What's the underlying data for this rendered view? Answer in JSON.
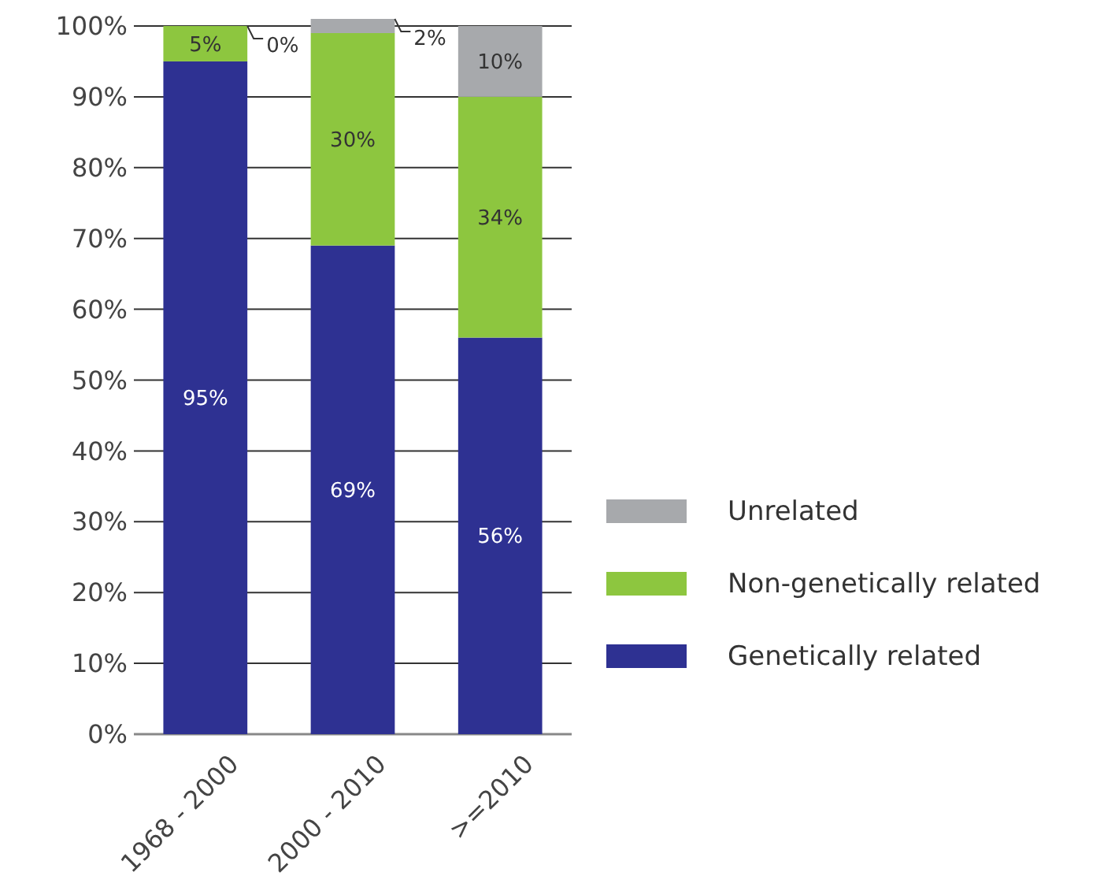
{
  "chart_data": {
    "type": "bar",
    "stacked": true,
    "categories": [
      "1968 - 2000",
      "2000 - 2010",
      ">=2010"
    ],
    "series": [
      {
        "name": "Genetically related",
        "color": "#2e3192",
        "values": [
          95,
          69,
          56
        ],
        "value_labels": [
          "95%",
          "69%",
          "56%"
        ]
      },
      {
        "name": "Non-genetically related",
        "color": "#8dc63f",
        "values": [
          5,
          30,
          34
        ],
        "value_labels": [
          "5%",
          "30%",
          "34%"
        ]
      },
      {
        "name": "Unrelated",
        "color": "#a7a9ac",
        "values": [
          0,
          2,
          10
        ],
        "value_labels": [
          "0%",
          "2%",
          "10%"
        ]
      }
    ],
    "ylim": [
      0,
      101
    ],
    "yticks": [
      {
        "value": 0,
        "label": "0%"
      },
      {
        "value": 10,
        "label": "10%"
      },
      {
        "value": 20,
        "label": "20%"
      },
      {
        "value": 30,
        "label": "30%"
      },
      {
        "value": 40,
        "label": "40%"
      },
      {
        "value": 50,
        "label": "50%"
      },
      {
        "value": 60,
        "label": "60%"
      },
      {
        "value": 70,
        "label": "70%"
      },
      {
        "value": 80,
        "label": "80%"
      },
      {
        "value": 90,
        "label": "90%"
      },
      {
        "value": 100,
        "label": "100%"
      }
    ],
    "grid": "y",
    "legend": "right"
  }
}
